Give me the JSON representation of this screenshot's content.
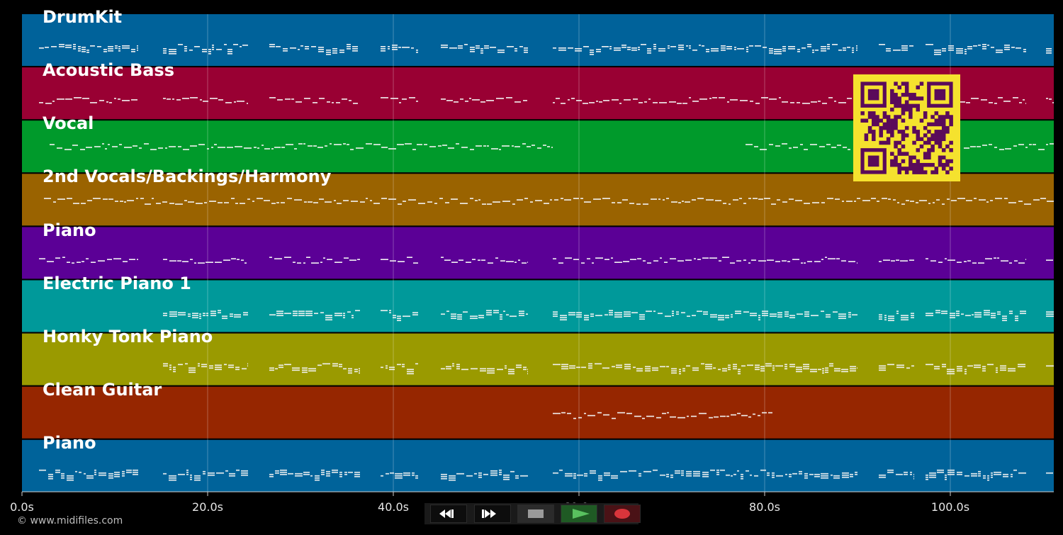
{
  "tracks": [
    {
      "name": "DrumKit",
      "color": "#00629a"
    },
    {
      "name": "Acoustic Bass",
      "color": "#990033"
    },
    {
      "name": "Vocal",
      "color": "#009a2b"
    },
    {
      "name": "2nd Vocals/Backings/Harmony",
      "color": "#9a6300"
    },
    {
      "name": "Piano",
      "color": "#5b0096"
    },
    {
      "name": "Electric Piano 1",
      "color": "#00999a"
    },
    {
      "name": "Honky Tonk Piano",
      "color": "#9a9a00"
    },
    {
      "name": "Clean Guitar",
      "color": "#962600"
    },
    {
      "name": "Piano",
      "color": "#00639a"
    }
  ],
  "timeline": {
    "ticks": [
      "0.0s",
      "20.0s",
      "40.0s",
      "60.0s",
      "80.0s",
      "100.0s"
    ]
  },
  "copyright": "© www.midifiles.com",
  "transport": {
    "buttons": [
      "rewind",
      "fast-forward",
      "stop",
      "play",
      "record"
    ]
  },
  "qr_code": {
    "fg": "#5a0a5a",
    "bg": "#f5e22e"
  }
}
